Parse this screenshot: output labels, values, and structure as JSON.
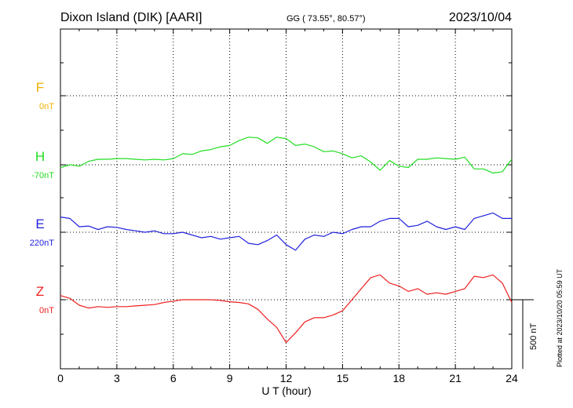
{
  "header": {
    "station": "Dixon Island (DIK)  [AARI]",
    "coords": "GG ( 73.55°,  80.57°)",
    "date": "2023/10/04"
  },
  "plotted_note": "Plotted at 2023/10/20 05:59 UT",
  "scale_label": "500 nT",
  "chart_data": {
    "type": "line",
    "xlabel": "U T (hour)",
    "xlim": [
      0,
      24
    ],
    "xticks": [
      0,
      3,
      6,
      9,
      12,
      15,
      18,
      21,
      24
    ],
    "scale_bar_nT": 500,
    "components": [
      {
        "name": "F",
        "baseline_label": "0nT",
        "color": "#f0b000",
        "x": [],
        "values": []
      },
      {
        "name": "H",
        "baseline_label": "-70nT",
        "color": "#22dd22",
        "x": [
          0,
          0.5,
          1,
          1.5,
          2,
          2.5,
          3,
          3.5,
          4,
          4.5,
          5,
          5.5,
          6,
          6.5,
          7,
          7.5,
          8,
          8.5,
          9,
          9.5,
          10,
          10.5,
          11,
          11.5,
          12,
          12.5,
          13,
          13.5,
          14,
          14.5,
          15,
          15.5,
          16,
          16.5,
          17,
          17.5,
          18,
          18.5,
          19,
          19.5,
          20,
          20.5,
          21,
          21.5,
          22,
          22.5,
          23,
          23.5,
          24
        ],
        "values": [
          -20,
          0,
          -10,
          25,
          40,
          40,
          45,
          45,
          40,
          35,
          40,
          35,
          45,
          80,
          75,
          100,
          110,
          130,
          140,
          175,
          200,
          195,
          155,
          200,
          190,
          140,
          150,
          130,
          95,
          100,
          80,
          50,
          65,
          20,
          -40,
          30,
          -10,
          -20,
          40,
          40,
          50,
          45,
          40,
          55,
          -30,
          -30,
          -60,
          -50,
          40
        ]
      },
      {
        "name": "E",
        "baseline_label": "220nT",
        "color": "#2020dd",
        "x": [
          0,
          0.5,
          1,
          1.5,
          2,
          2.5,
          3,
          3.5,
          4,
          4.5,
          5,
          5.5,
          6,
          6.5,
          7,
          7.5,
          8,
          8.5,
          9,
          9.5,
          10,
          10.5,
          11,
          11.5,
          12,
          12.5,
          13,
          13.5,
          14,
          14.5,
          15,
          15.5,
          16,
          16.5,
          17,
          17.5,
          18,
          18.5,
          19,
          19.5,
          20,
          20.5,
          21,
          21.5,
          22,
          22.5,
          23,
          23.5,
          24
        ],
        "values": [
          110,
          100,
          40,
          45,
          20,
          40,
          35,
          20,
          10,
          0,
          10,
          -10,
          -10,
          0,
          -20,
          -40,
          -30,
          -50,
          -40,
          -30,
          -80,
          -90,
          -60,
          -20,
          -90,
          -130,
          -50,
          -20,
          -30,
          0,
          -10,
          20,
          40,
          40,
          80,
          100,
          100,
          40,
          50,
          80,
          40,
          20,
          40,
          20,
          100,
          120,
          140,
          100,
          100
        ]
      },
      {
        "name": "Z",
        "baseline_label": "0nT",
        "color": "#ee2020",
        "x": [
          0,
          0.5,
          1,
          1.5,
          2,
          2.5,
          3,
          3.5,
          4,
          4.5,
          5,
          5.5,
          6,
          6.5,
          7,
          7.5,
          8,
          8.5,
          9,
          9.5,
          10,
          10.5,
          11,
          11.5,
          12,
          12.5,
          13,
          13.5,
          14,
          14.5,
          15,
          15.5,
          16,
          16.5,
          17,
          17.5,
          18,
          18.5,
          19,
          19.5,
          20,
          20.5,
          21,
          21.5,
          22,
          22.5,
          23,
          23.5,
          24
        ],
        "values": [
          30,
          10,
          -40,
          -60,
          -50,
          -55,
          -50,
          -50,
          -45,
          -40,
          -35,
          -20,
          -10,
          0,
          0,
          0,
          0,
          -5,
          -15,
          -20,
          -30,
          -70,
          -140,
          -200,
          -310,
          -240,
          -160,
          -130,
          -130,
          -110,
          -80,
          0,
          80,
          160,
          180,
          120,
          100,
          60,
          80,
          40,
          50,
          40,
          60,
          80,
          170,
          160,
          180,
          120,
          -20
        ]
      }
    ]
  }
}
